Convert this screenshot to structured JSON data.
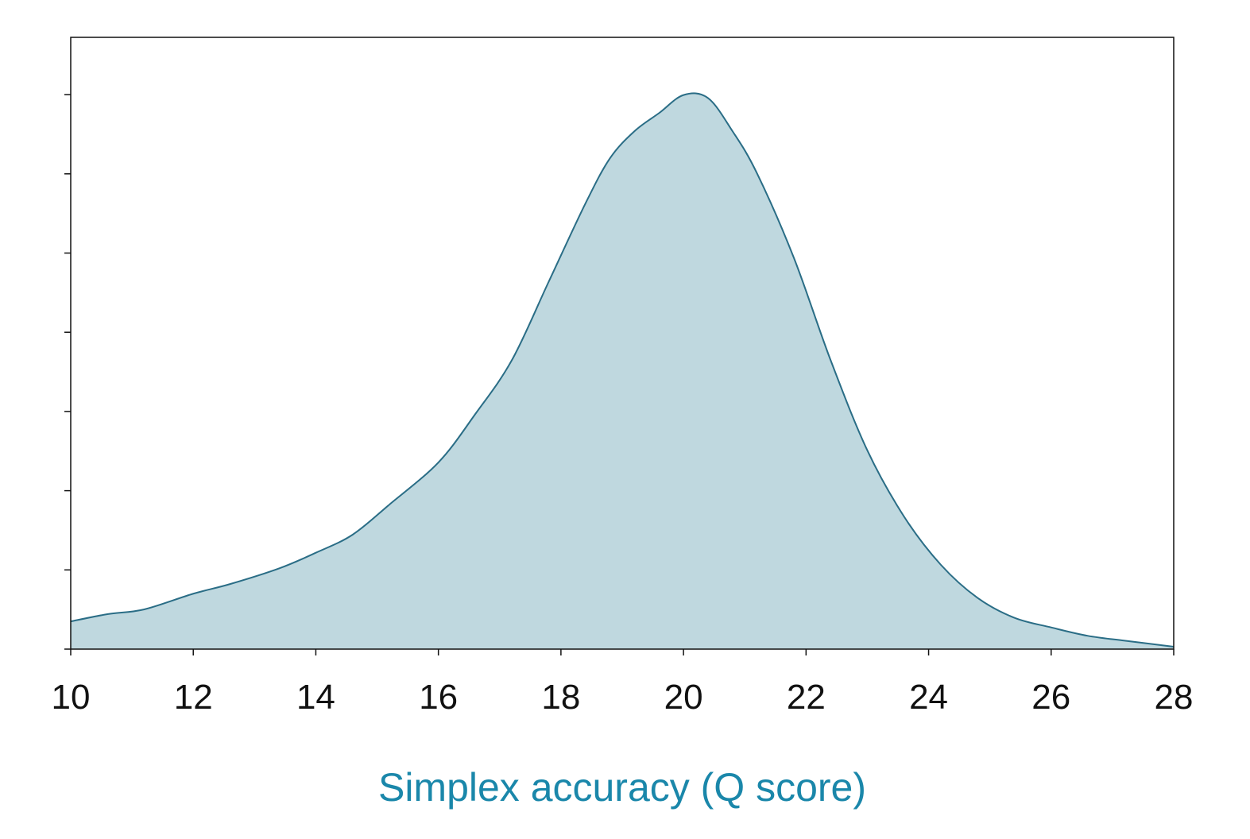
{
  "colors": {
    "fill": "#bfd8df",
    "line": "#2a6d86",
    "axis": "#111111",
    "xlabel": "#1a87aa"
  },
  "chart_data": {
    "type": "area",
    "title": "",
    "xlabel": "Simplex accuracy (Q score)",
    "ylabel": "",
    "xlim": [
      10,
      28
    ],
    "ylim": [
      0,
      1.0
    ],
    "grid": false,
    "legend": "none",
    "x_ticks": [
      "10",
      "12",
      "14",
      "16",
      "18",
      "20",
      "22",
      "24",
      "26",
      "28"
    ],
    "y_ticks_count": 7,
    "series": [
      {
        "x": [
          10,
          10.6,
          11.2,
          12,
          12.6,
          13.4,
          14,
          14.6,
          15.2,
          16,
          16.6,
          17.2,
          17.8,
          18.4,
          18.8,
          19.2,
          19.6,
          20.0,
          20.4,
          20.8,
          21.2,
          21.8,
          22.4,
          23,
          23.6,
          24.2,
          24.8,
          25.4,
          26,
          26.6,
          27.2,
          28
        ],
        "y": [
          0.046,
          0.058,
          0.066,
          0.092,
          0.108,
          0.134,
          0.16,
          0.19,
          0.24,
          0.31,
          0.39,
          0.48,
          0.61,
          0.74,
          0.815,
          0.86,
          0.89,
          0.92,
          0.915,
          0.86,
          0.79,
          0.65,
          0.48,
          0.33,
          0.22,
          0.14,
          0.085,
          0.052,
          0.036,
          0.022,
          0.014,
          0.004
        ]
      }
    ]
  }
}
